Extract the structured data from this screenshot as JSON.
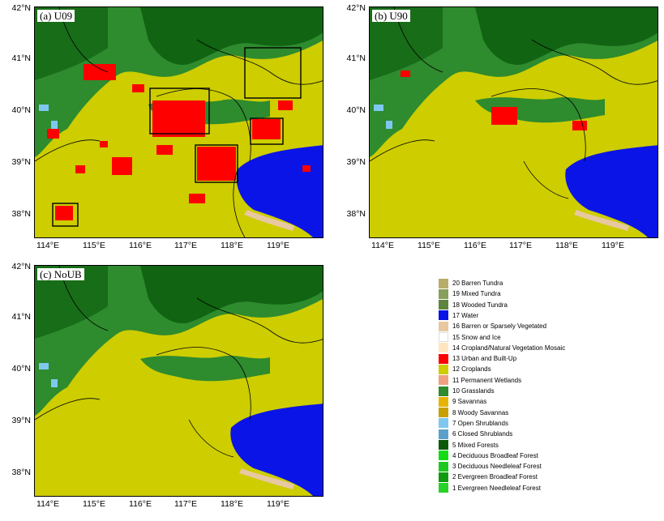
{
  "panels": [
    {
      "id": "u09",
      "label": "(a)  U09"
    },
    {
      "id": "u90",
      "label": "(b)  U90"
    },
    {
      "id": "noub",
      "label": "(c)  NoUB"
    }
  ],
  "axes": {
    "x_ticks": [
      "114°E",
      "115°E",
      "116°E",
      "117°E",
      "118°E",
      "119°E"
    ],
    "y_ticks": [
      "42°N",
      "41°N",
      "40°N",
      "39°N",
      "38°N"
    ]
  },
  "legend": [
    {
      "label": "20 Barren Tundra",
      "color": "#b8ad6a"
    },
    {
      "label": "19 Mixed Tundra",
      "color": "#87a05a"
    },
    {
      "label": "18 Wooded Tundra",
      "color": "#5f8440"
    },
    {
      "label": "17 Water",
      "color": "#0a14e6"
    },
    {
      "label": "16 Barren or Sparsely Vegetated",
      "color": "#e8c8a0"
    },
    {
      "label": "15 Snow and Ice",
      "color": "#ffffff"
    },
    {
      "label": "14 Cropland/Natural Vegetation Mosaic",
      "color": "#ffe6c0"
    },
    {
      "label": "13 Urban and Built-Up",
      "color": "#ff0000"
    },
    {
      "label": "12 Croplands",
      "color": "#cdcd00"
    },
    {
      "label": "11 Permanent Wetlands",
      "color": "#f0a080"
    },
    {
      "label": "10 Grasslands",
      "color": "#2e8b2e"
    },
    {
      "label": "9 Savannas",
      "color": "#e6b400"
    },
    {
      "label": "8 Woody Savannas",
      "color": "#c8a000"
    },
    {
      "label": "7 Open Shrublands",
      "color": "#7ec8f0"
    },
    {
      "label": "6 Closed Shrublands",
      "color": "#5aa0c8"
    },
    {
      "label": "5 Mixed Forests",
      "color": "#0a5a0a"
    },
    {
      "label": "4 Deciduous Broadleaf Forest",
      "color": "#14dc14"
    },
    {
      "label": "3 Deciduous Needleleaf Forest",
      "color": "#1ec81e"
    },
    {
      "label": "2 Evergreen Broadleaf Forest",
      "color": "#0f9a0f"
    },
    {
      "label": "1 Evergreen Needleleaf Forest",
      "color": "#28d228"
    }
  ]
}
